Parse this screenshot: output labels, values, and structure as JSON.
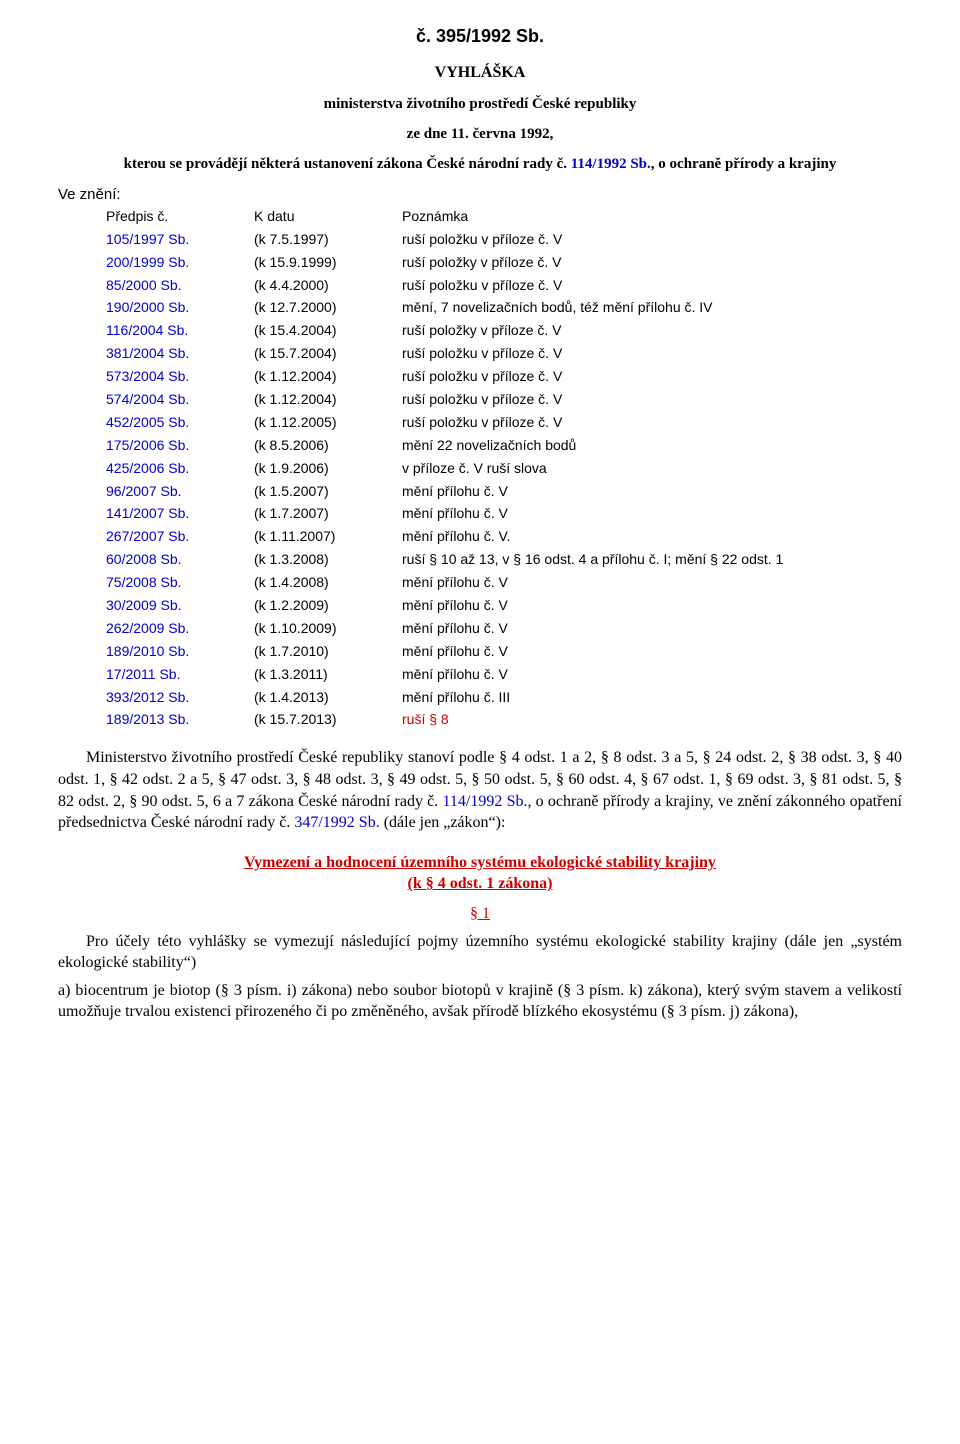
{
  "header": {
    "title": "č. 395/1992 Sb.",
    "subtitle": "VYHLÁŠKA",
    "intro1": "ministerstva životního prostředí České republiky",
    "intro2": "ze dne 11. června 1992,",
    "intro3_prefix": "kterou se provádějí některá ustanovení zákona České národní rady č. ",
    "intro3_link": "114/1992 Sb.",
    "intro3_suffix": ", o ochraně přírody a krajiny"
  },
  "amend": {
    "heading": "Ve znění:",
    "col1": "Předpis č.",
    "col2": "K datu",
    "col3": "Poznámka",
    "rows": [
      {
        "p": "105/1997 Sb.",
        "d": "(k 7.5.1997)",
        "n": "ruší položku v příloze č. V"
      },
      {
        "p": "200/1999 Sb.",
        "d": "(k 15.9.1999)",
        "n": "ruší položky v příloze č. V"
      },
      {
        "p": "85/2000 Sb.",
        "d": "(k 4.4.2000)",
        "n": "ruší položku v příloze č. V"
      },
      {
        "p": "190/2000 Sb.",
        "d": "(k 12.7.2000)",
        "n": "mění, 7 novelizačních bodů, též mění přílohu č. IV"
      },
      {
        "p": "116/2004 Sb.",
        "d": "(k 15.4.2004)",
        "n": "ruší položky v příloze č. V"
      },
      {
        "p": "381/2004 Sb.",
        "d": "(k 15.7.2004)",
        "n": "ruší položku v příloze č. V"
      },
      {
        "p": "573/2004 Sb.",
        "d": "(k 1.12.2004)",
        "n": "ruší položku v příloze č. V"
      },
      {
        "p": "574/2004 Sb.",
        "d": "(k 1.12.2004)",
        "n": "ruší položku v příloze č. V"
      },
      {
        "p": "452/2005 Sb.",
        "d": "(k 1.12.2005)",
        "n": "ruší položku v příloze č. V"
      },
      {
        "p": "175/2006 Sb.",
        "d": "(k 8.5.2006)",
        "n": "mění 22 novelizačních bodů"
      },
      {
        "p": "425/2006 Sb.",
        "d": "(k 1.9.2006)",
        "n": "v příloze č. V ruší slova"
      },
      {
        "p": "96/2007 Sb.",
        "d": "(k 1.5.2007)",
        "n": "mění přílohu č. V"
      },
      {
        "p": "141/2007 Sb.",
        "d": "(k 1.7.2007)",
        "n": "mění přílohu č. V"
      },
      {
        "p": "267/2007 Sb.",
        "d": "(k 1.11.2007)",
        "n": "mění přílohu č. V."
      },
      {
        "p": "60/2008 Sb.",
        "d": "(k 1.3.2008)",
        "n": "ruší § 10 až 13, v § 16 odst. 4 a přílohu č. I; mění § 22 odst. 1"
      },
      {
        "p": "75/2008 Sb.",
        "d": "(k 1.4.2008)",
        "n": "mění přílohu č. V"
      },
      {
        "p": "30/2009 Sb.",
        "d": "(k 1.2.2009)",
        "n": "mění přílohu č. V"
      },
      {
        "p": "262/2009 Sb.",
        "d": "(k 1.10.2009)",
        "n": "mění přílohu č. V"
      },
      {
        "p": "189/2010 Sb.",
        "d": "(k 1.7.2010)",
        "n": "mění přílohu č. V"
      },
      {
        "p": "17/2011 Sb.",
        "d": "(k 1.3.2011)",
        "n": "mění přílohu č. V"
      },
      {
        "p": "393/2012 Sb.",
        "d": "(k 1.4.2013)",
        "n": "mění přílohu č. III"
      },
      {
        "p": "189/2013 Sb.",
        "d": "(k 15.7.2013)",
        "n": "ruší § 8",
        "red": true
      }
    ]
  },
  "paragraph1": {
    "t1": "Ministerstvo životního prostředí České republiky stanoví podle § 4 odst. 1 a 2, § 8 odst. 3 a 5, § 24 odst. 2, § 38 odst. 3, § 40 odst. 1, § 42 odst. 2 a 5, § 47 odst. 3, § 48 odst. 3, § 49 odst. 5, § 50 odst. 5, § 60 odst. 4, § 67 odst. 1, § 69 odst. 3, § 81 odst. 5, § 82 odst. 2, § 90 odst. 5, 6 a 7 zákona České národní rady č. ",
    "link1": "114/1992 Sb.",
    "t2": ", o ochraně přírody a krajiny, ve znění zákonného opatření předsednictva České národní rady č. ",
    "link2": "347/1992 Sb.",
    "t3": " (dále jen „zákon“):"
  },
  "section": {
    "line1": "Vymezení a hodnocení územního systému ekologické stability krajiny",
    "line2": "(k § 4 odst. 1 zákona)",
    "num": "§ 1"
  },
  "p2": {
    "lead": "Pro účely této vyhlášky se vymezují následující pojmy územního systému ekologické stability krajiny (dále jen „systém ekologické stability“)",
    "a": "a) biocentrum je biotop (§ 3 písm. i) zákona) nebo soubor biotopů v krajině (§ 3 písm. k) zákona), který svým stavem a velikostí umožňuje trvalou existenci přirozeného či po změněného, avšak přírodě blízkého ekosystému (§ 3 písm. j) zákona),"
  },
  "colors": {
    "link": "#0000cc",
    "red": "#cc0000",
    "text": "#000000",
    "bg": "#ffffff"
  }
}
